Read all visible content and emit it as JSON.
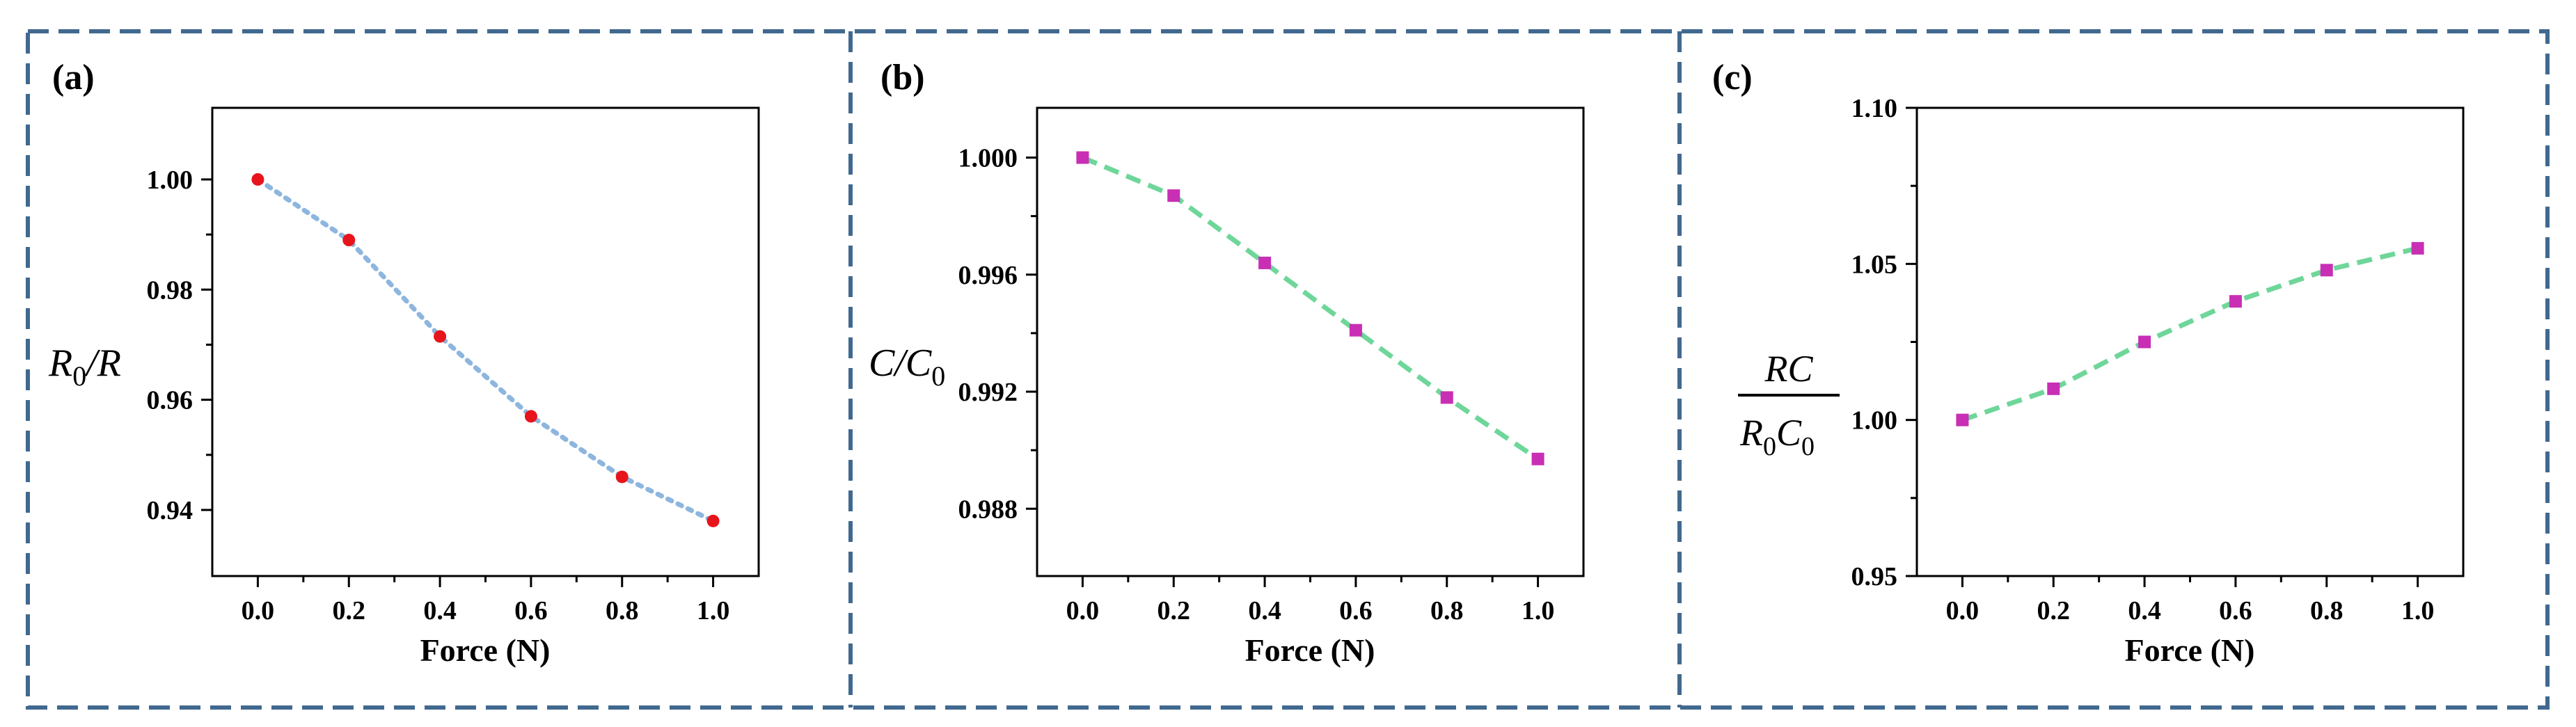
{
  "colors": {
    "frame": "#41698f",
    "axis": "#000000",
    "marker_a": "#e8141b",
    "line_a": "#8db6df",
    "marker_bc": "#c82fb4",
    "line_bc": "#6fd69a"
  },
  "chart_data": [
    {
      "panel_label": "(a)",
      "type": "line",
      "xlabel": "Force (N)",
      "ylabel": "R0/R",
      "xlim": [
        -0.1,
        1.1
      ],
      "ylim": [
        0.928,
        1.013
      ],
      "xticks": [
        "0.0",
        "0.2",
        "0.4",
        "0.6",
        "0.8",
        "1.0"
      ],
      "yticks": [
        "0.94",
        "0.96",
        "0.98",
        "1.00"
      ],
      "x": [
        0.0,
        0.2,
        0.4,
        0.6,
        0.8,
        1.0
      ],
      "series": [
        {
          "values": [
            1.0,
            0.989,
            0.9715,
            0.957,
            0.946,
            0.938
          ],
          "marker": "circle",
          "line_style": "dotted"
        }
      ]
    },
    {
      "panel_label": "(b)",
      "type": "line",
      "xlabel": "Force (N)",
      "ylabel": "C/C0",
      "xlim": [
        -0.1,
        1.1
      ],
      "ylim": [
        0.9857,
        1.0017
      ],
      "xticks": [
        "0.0",
        "0.2",
        "0.4",
        "0.6",
        "0.8",
        "1.0"
      ],
      "yticks": [
        "0.988",
        "0.992",
        "0.996",
        "1.000"
      ],
      "x": [
        0.0,
        0.2,
        0.4,
        0.6,
        0.8,
        1.0
      ],
      "series": [
        {
          "values": [
            1.0,
            0.9987,
            0.9964,
            0.9941,
            0.9918,
            0.9897
          ],
          "marker": "square",
          "line_style": "dashed"
        }
      ]
    },
    {
      "panel_label": "(c)",
      "type": "line",
      "xlabel": "Force (N)",
      "ylabel": "RC / R0C0",
      "xlim": [
        -0.1,
        1.1
      ],
      "ylim": [
        0.95,
        1.1
      ],
      "xticks": [
        "0.0",
        "0.2",
        "0.4",
        "0.6",
        "0.8",
        "1.0"
      ],
      "yticks": [
        "0.95",
        "1.00",
        "1.05",
        "1.10"
      ],
      "x": [
        0.0,
        0.2,
        0.4,
        0.6,
        0.8,
        1.0
      ],
      "series": [
        {
          "values": [
            1.0,
            1.01,
            1.025,
            1.038,
            1.048,
            1.055
          ],
          "marker": "square",
          "line_style": "dashed"
        }
      ]
    }
  ]
}
